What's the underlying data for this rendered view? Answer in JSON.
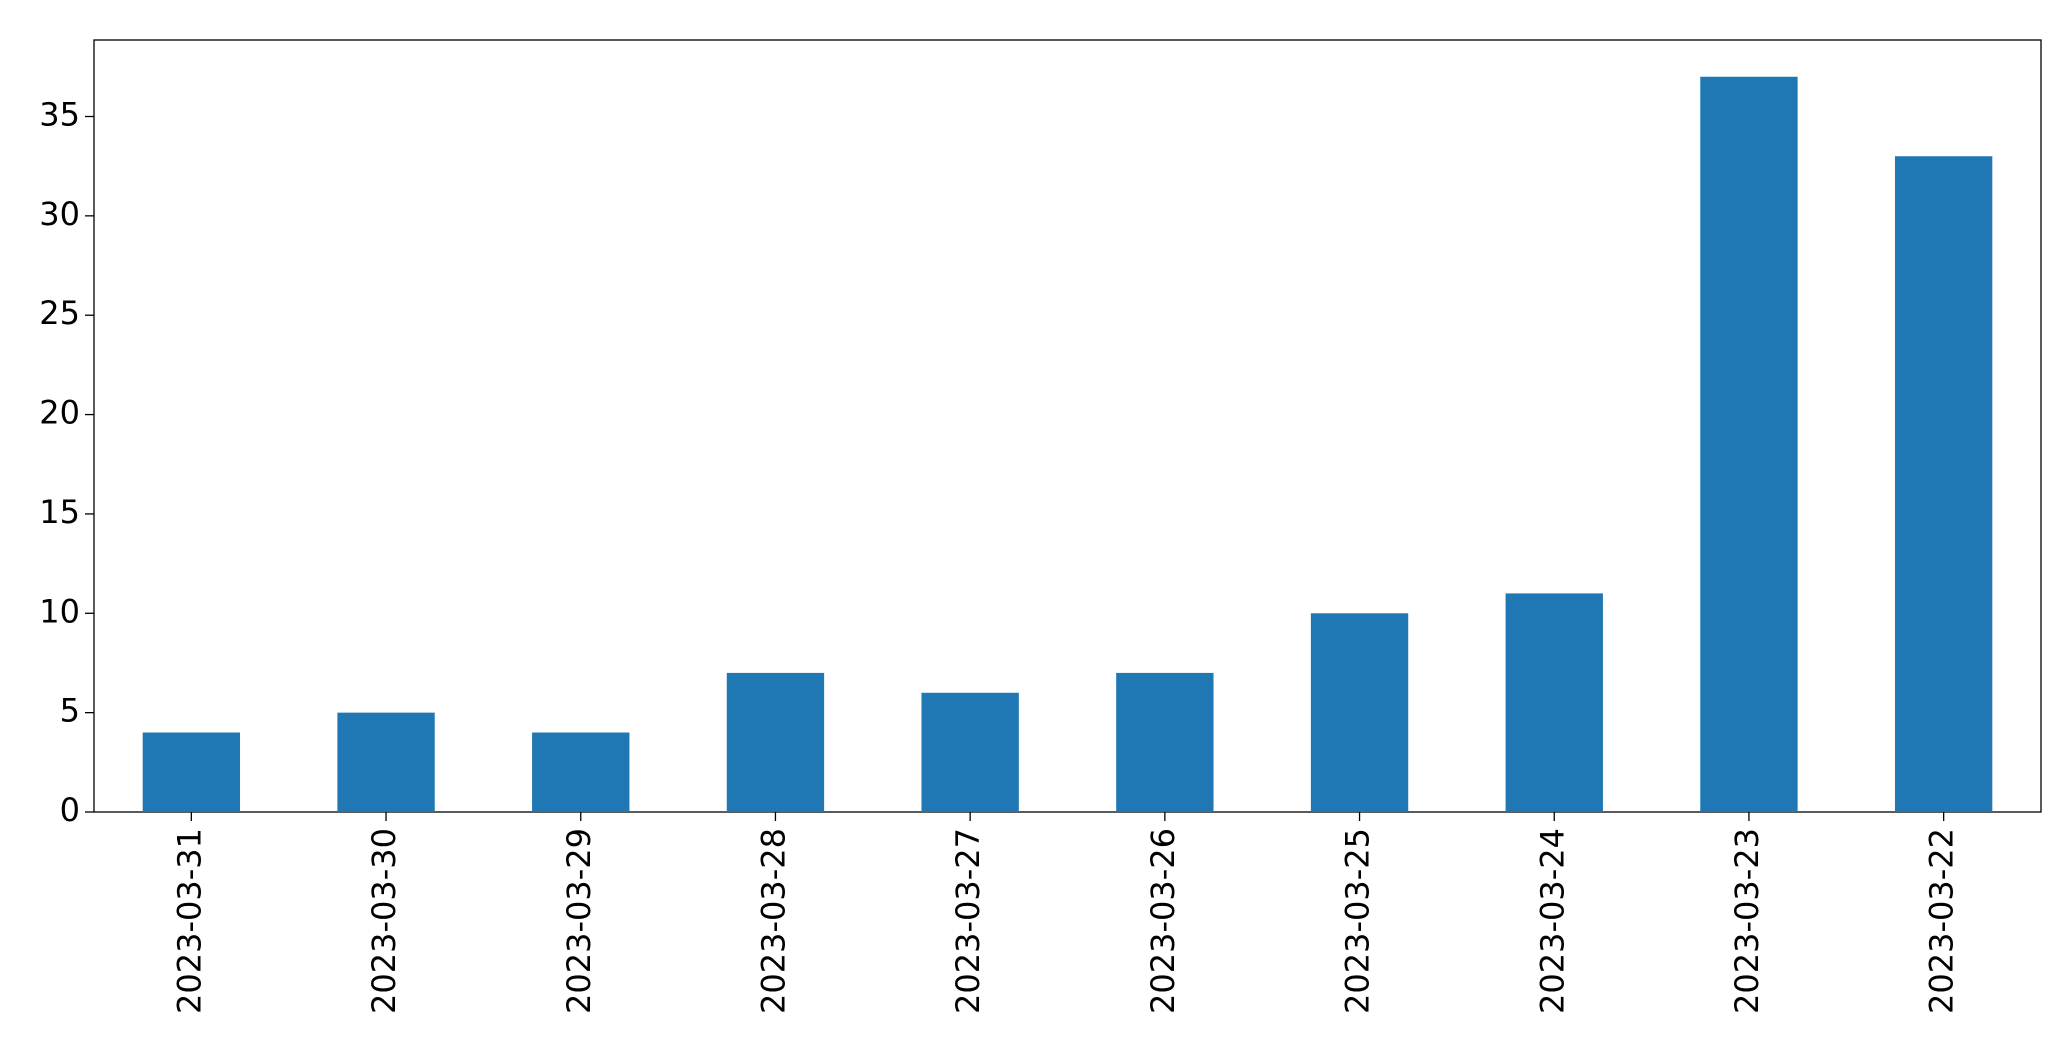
{
  "chart_data": {
    "type": "bar",
    "categories": [
      "2023-03-31",
      "2023-03-30",
      "2023-03-29",
      "2023-03-28",
      "2023-03-27",
      "2023-03-26",
      "2023-03-25",
      "2023-03-24",
      "2023-03-23",
      "2023-03-22"
    ],
    "values": [
      4,
      5,
      4,
      7,
      6,
      7,
      10,
      11,
      37,
      33
    ],
    "color": "#1f77b4",
    "ylim": [
      0,
      38.85
    ],
    "yticks": [
      0,
      5,
      10,
      15,
      20,
      25,
      30,
      35
    ],
    "grid": false
  }
}
